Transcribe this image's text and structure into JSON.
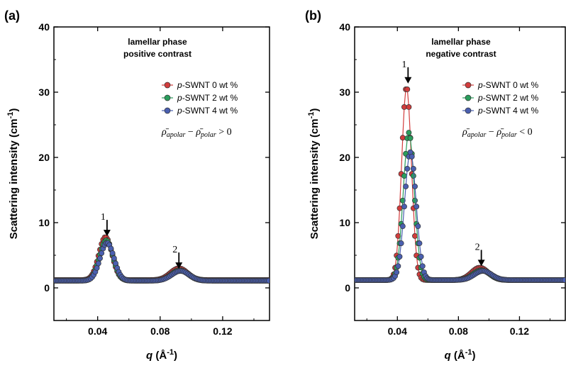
{
  "colors": {
    "s0": "#d23c3c",
    "s2": "#2a9d5c",
    "s4": "#4a5fb0"
  },
  "chart_data": [
    {
      "type": "scatter",
      "panel_label": "(a)",
      "annotation": [
        "lamellar phase",
        "positive contrast"
      ],
      "xlabel": "q (Å⁻¹)",
      "ylabel": "Scattering intensity (cm⁻¹)",
      "xlim": [
        0.012,
        0.15
      ],
      "ylim": [
        -5,
        40
      ],
      "xticks": [
        "0.04",
        "0.08",
        "0.12"
      ],
      "yticks": [
        "0",
        "10",
        "20",
        "30",
        "40"
      ],
      "legend_position": "top-right",
      "formula": "ρ̄apolar − ρ̄polar > 0",
      "peak_labels": [
        {
          "text": "1",
          "q": 0.046,
          "y": 7.6
        },
        {
          "text": "2",
          "q": 0.092,
          "y": 2.6
        }
      ],
      "series": [
        {
          "name": "p-SWNT 0 wt %",
          "color_key": "s0",
          "baseline": 1.2,
          "peaks": [
            {
              "q": 0.045,
              "h": 6.6,
              "w": 0.0042
            },
            {
              "q": 0.092,
              "h": 1.8,
              "w": 0.0055
            }
          ]
        },
        {
          "name": "p-SWNT 2 wt %",
          "color_key": "s2",
          "baseline": 1.1,
          "peaks": [
            {
              "q": 0.0455,
              "h": 6.2,
              "w": 0.0043
            },
            {
              "q": 0.0925,
              "h": 1.6,
              "w": 0.0055
            }
          ]
        },
        {
          "name": "p-SWNT 4 wt %",
          "color_key": "s4",
          "baseline": 1.1,
          "peaks": [
            {
              "q": 0.046,
              "h": 5.8,
              "w": 0.0044
            },
            {
              "q": 0.093,
              "h": 1.5,
              "w": 0.0056
            }
          ]
        }
      ]
    },
    {
      "type": "scatter",
      "panel_label": "(b)",
      "annotation": [
        "lamellar phase",
        "negative contrast"
      ],
      "xlabel": "q (Å⁻¹)",
      "ylabel": "Scattering intensity (cm⁻¹)",
      "xlim": [
        0.012,
        0.15
      ],
      "ylim": [
        -5,
        40
      ],
      "xticks": [
        "0.04",
        "0.08",
        "0.12"
      ],
      "yticks": [
        "0",
        "10",
        "20",
        "30",
        "40"
      ],
      "legend_position": "top-right",
      "formula": "ρ̄apolar − ρ̄polar < 0",
      "peak_labels": [
        {
          "text": "1",
          "q": 0.047,
          "y": 31
        },
        {
          "text": "2",
          "q": 0.095,
          "y": 3.0
        }
      ],
      "series": [
        {
          "name": "p-SWNT 0 wt %",
          "color_key": "s0",
          "baseline": 1.2,
          "peaks": [
            {
              "q": 0.046,
              "h": 29.6,
              "w": 0.0032
            },
            {
              "q": 0.094,
              "h": 1.9,
              "w": 0.0055
            }
          ]
        },
        {
          "name": "p-SWNT 2 wt %",
          "color_key": "s2",
          "baseline": 1.2,
          "peaks": [
            {
              "q": 0.0475,
              "h": 22.6,
              "w": 0.0036
            },
            {
              "q": 0.095,
              "h": 1.5,
              "w": 0.0055
            }
          ]
        },
        {
          "name": "p-SWNT 4 wt %",
          "color_key": "s4",
          "baseline": 1.2,
          "peaks": [
            {
              "q": 0.0485,
              "h": 19.6,
              "w": 0.0038
            },
            {
              "q": 0.096,
              "h": 1.4,
              "w": 0.0056
            }
          ]
        }
      ]
    }
  ]
}
